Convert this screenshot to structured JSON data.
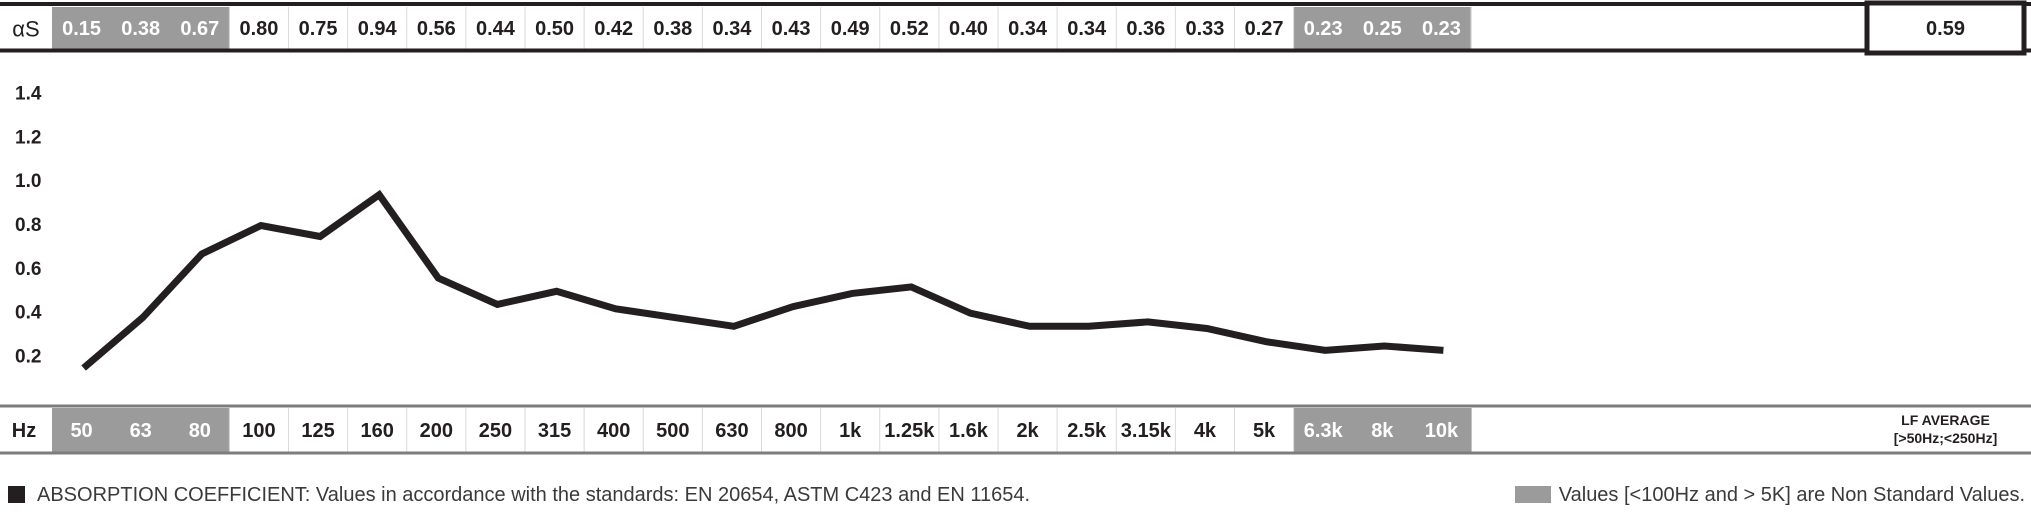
{
  "chart_data": {
    "type": "line",
    "row_label_top": "αS",
    "row_label_bottom": "Hz",
    "x": [
      "50",
      "63",
      "80",
      "100",
      "125",
      "160",
      "200",
      "250",
      "315",
      "400",
      "500",
      "630",
      "800",
      "1k",
      "1.25k",
      "1.6k",
      "2k",
      "2.5k",
      "3.15k",
      "4k",
      "5k",
      "6.3k",
      "8k",
      "10k"
    ],
    "values": [
      0.15,
      0.38,
      0.67,
      0.8,
      0.75,
      0.94,
      0.56,
      0.44,
      0.5,
      0.42,
      0.38,
      0.34,
      0.43,
      0.49,
      0.52,
      0.4,
      0.34,
      0.34,
      0.36,
      0.33,
      0.27,
      0.23,
      0.25,
      0.23
    ],
    "value_labels": [
      "0.15",
      "0.38",
      "0.67",
      "0.80",
      "0.75",
      "0.94",
      "0.56",
      "0.44",
      "0.50",
      "0.42",
      "0.38",
      "0.34",
      "0.43",
      "0.49",
      "0.52",
      "0.40",
      "0.34",
      "0.34",
      "0.36",
      "0.33",
      "0.27",
      "0.23",
      "0.25",
      "0.23"
    ],
    "non_standard": [
      true,
      true,
      true,
      false,
      false,
      false,
      false,
      false,
      false,
      false,
      false,
      false,
      false,
      false,
      false,
      false,
      false,
      false,
      false,
      false,
      false,
      true,
      true,
      true
    ],
    "y_ticks": [
      "1.4",
      "1.2",
      "1.0",
      "0.8",
      "0.6",
      "0.4",
      "0.2"
    ],
    "ylim": [
      0.1,
      1.45
    ],
    "lf_average": {
      "value": "0.59",
      "label_line1": "LF AVERAGE",
      "label_line2": "[>50Hz;<250Hz]"
    },
    "grid": false,
    "colors": {
      "line": "#231f20",
      "non_standard_fill": "#9b9b9b",
      "frame": "#231f20",
      "bottom_rule": "#7d7d7d"
    }
  },
  "footnotes": {
    "left": "ABSORPTION COEFFICIENT: Values in accordance with the standards: EN 20654, ASTM C423 and EN 11654.",
    "right": "Values [<100Hz and > 5K] are Non Standard Values."
  }
}
